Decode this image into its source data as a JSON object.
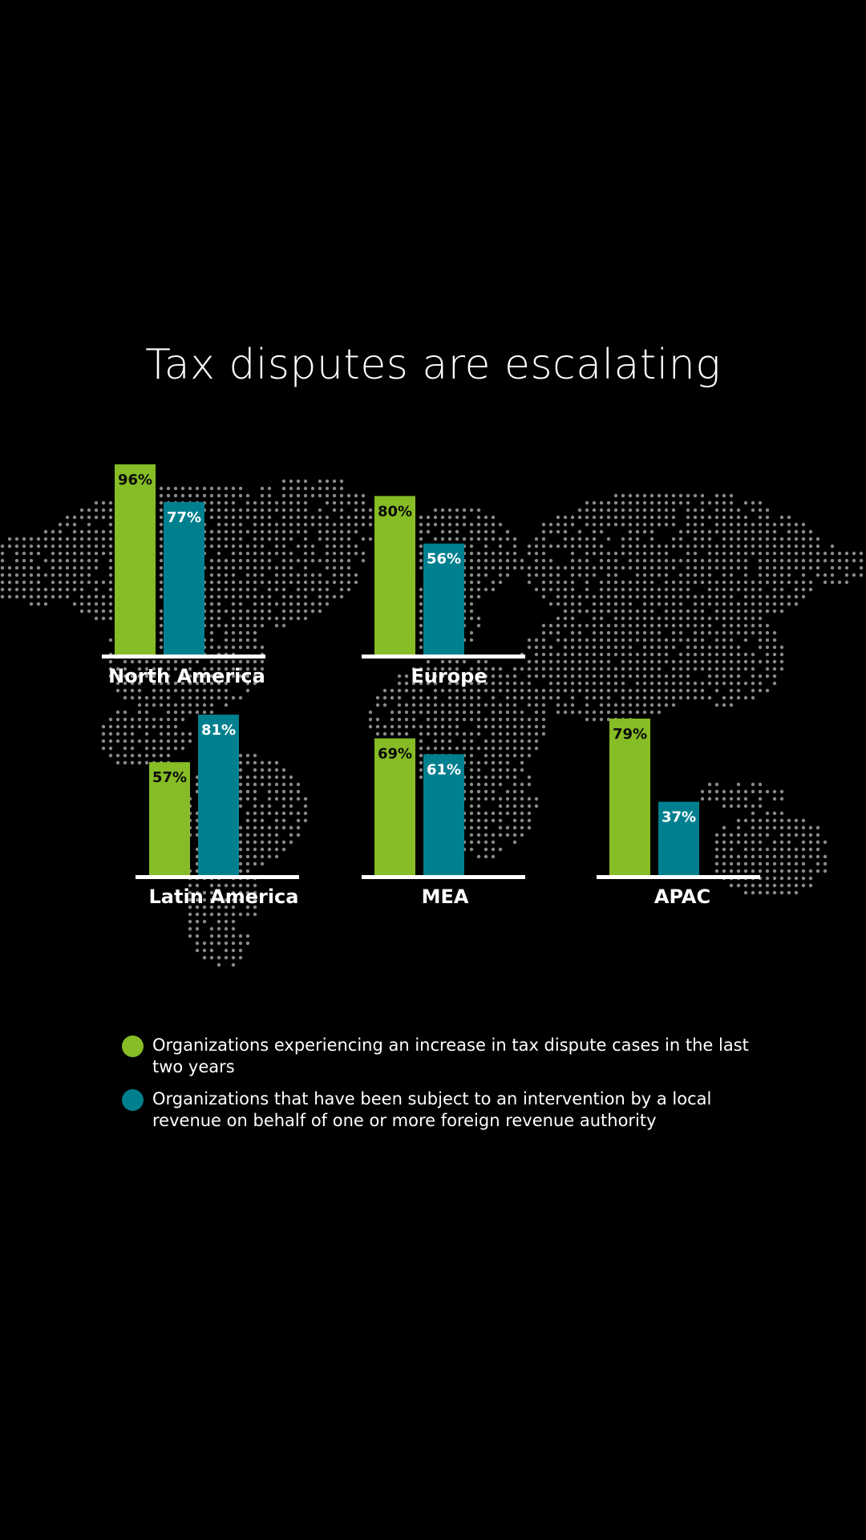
{
  "colors": {
    "background": "#000000",
    "series1": "#86bc25",
    "series2": "#00808f",
    "baseline": "#ffffff",
    "map_dots": "#8a8a8a"
  },
  "title": "Tax disputes are escalating",
  "chart_data": {
    "type": "bar",
    "categories": [
      "North America",
      "Europe",
      "Latin America",
      "MEA",
      "APAC"
    ],
    "series": [
      {
        "name": "Organizations experiencing an increase in tax dispute cases in the last two years",
        "values": [
          96,
          80,
          57,
          69,
          79
        ]
      },
      {
        "name": "Organizations that have been subject to an intervention by a local revenue on behalf of one or more foreign revenue authority",
        "values": [
          77,
          56,
          81,
          61,
          37
        ]
      }
    ],
    "unit": "%",
    "data_labels": [
      [
        "96%",
        "80%",
        "57%",
        "69%",
        "79%"
      ],
      [
        "77%",
        "56%",
        "81%",
        "61%",
        "37%"
      ]
    ],
    "background": "world map dot pattern"
  },
  "legend": [
    {
      "text": "Organizations experiencing an increase in tax dispute cases in the last two years",
      "color": "#86bc25"
    },
    {
      "text": "Organizations that have been subject to an intervention by a local revenue on behalf of one or more foreign revenue authority",
      "color": "#00808f"
    }
  ]
}
